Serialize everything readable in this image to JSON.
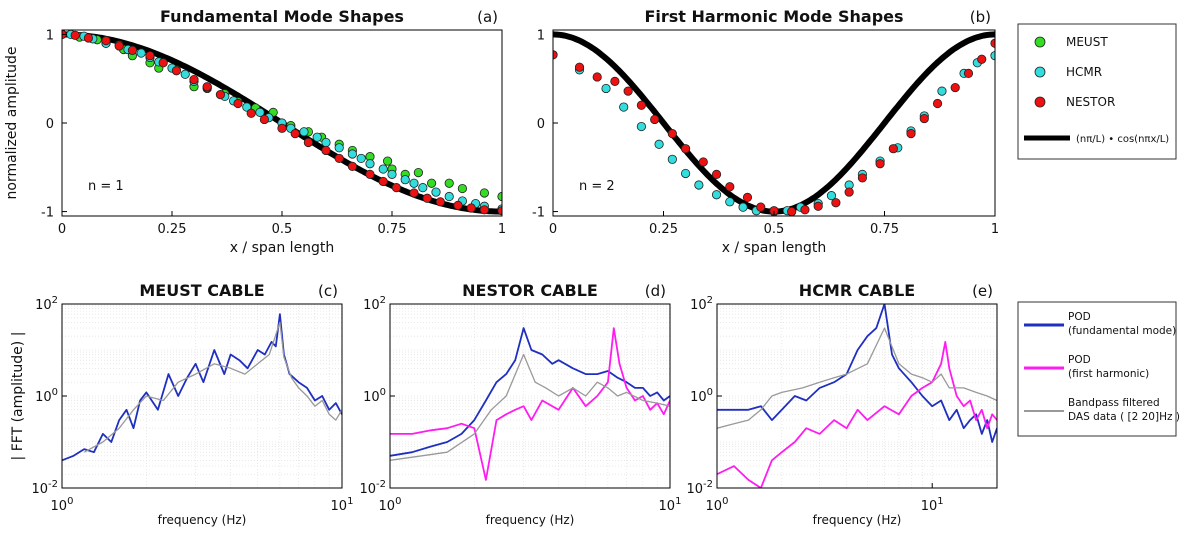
{
  "colors": {
    "meust": "#33dd22",
    "hcmr": "#33dddd",
    "nestor": "#ee1111",
    "theory": "#000000",
    "pod_fund": "#1f2fc0",
    "pod_harm": "#ff1cf0",
    "das": "#999999"
  },
  "legend_top": {
    "items": [
      "MEUST",
      "HCMR",
      "NESTOR",
      "(nπ/L) • cos(nπx/L)"
    ]
  },
  "legend_bottom": {
    "items": [
      {
        "line1": "POD",
        "line2": "(fundamental mode)"
      },
      {
        "line1": "POD",
        "line2": "(first harmonic)"
      },
      {
        "line1": "Bandpass filtered",
        "line2": "DAS data ( [2  20]Hz )"
      }
    ]
  },
  "chart_data": [
    {
      "id": "a",
      "type": "scatter",
      "title": "Fundamental Mode Shapes",
      "panel_label": "(a)",
      "annotation": "n = 1",
      "xlabel": "x / span length",
      "ylabel": "normalized amplitude",
      "xlim": [
        0,
        1
      ],
      "ylim": [
        -1.05,
        1.05
      ],
      "xticks": [
        "0",
        "0.25",
        "0.5",
        "0.75",
        "1"
      ],
      "yticks": [
        "-1",
        "0",
        "1"
      ],
      "grid": false,
      "n": 1,
      "series": [
        {
          "name": "MEUST",
          "x": [
            0.0,
            0.04,
            0.08,
            0.1,
            0.14,
            0.16,
            0.2,
            0.22,
            0.26,
            0.3,
            0.33,
            0.37,
            0.4,
            0.44,
            0.48,
            0.52,
            0.56,
            0.59,
            0.63,
            0.66,
            0.7,
            0.74,
            0.75,
            0.78,
            0.81,
            0.84,
            0.88,
            0.91,
            0.96,
            1.0
          ],
          "y": [
            1.0,
            0.97,
            0.94,
            0.9,
            0.83,
            0.76,
            0.68,
            0.62,
            0.6,
            0.41,
            0.39,
            0.33,
            0.24,
            0.17,
            0.12,
            -0.03,
            -0.1,
            -0.16,
            -0.24,
            -0.31,
            -0.38,
            -0.43,
            -0.52,
            -0.58,
            -0.56,
            -0.68,
            -0.68,
            -0.74,
            -0.79,
            -0.83
          ]
        },
        {
          "name": "HCMR",
          "x": [
            0.0,
            0.02,
            0.05,
            0.07,
            0.1,
            0.13,
            0.15,
            0.18,
            0.2,
            0.22,
            0.25,
            0.28,
            0.3,
            0.33,
            0.37,
            0.39,
            0.42,
            0.45,
            0.47,
            0.5,
            0.52,
            0.55,
            0.58,
            0.6,
            0.63,
            0.66,
            0.68,
            0.7,
            0.73,
            0.75,
            0.78,
            0.8,
            0.82,
            0.85,
            0.88,
            0.91,
            0.94,
            0.96,
            1.0
          ],
          "y": [
            1.0,
            1.0,
            0.98,
            0.95,
            0.9,
            0.88,
            0.83,
            0.79,
            0.74,
            0.69,
            0.62,
            0.55,
            0.47,
            0.4,
            0.3,
            0.25,
            0.18,
            0.12,
            0.06,
            0.0,
            -0.06,
            -0.1,
            -0.16,
            -0.22,
            -0.28,
            -0.35,
            -0.4,
            -0.46,
            -0.52,
            -0.58,
            -0.64,
            -0.68,
            -0.73,
            -0.78,
            -0.83,
            -0.88,
            -0.91,
            -0.94,
            -0.97
          ]
        },
        {
          "name": "NESTOR",
          "x": [
            0.0,
            0.03,
            0.06,
            0.1,
            0.13,
            0.16,
            0.2,
            0.23,
            0.26,
            0.3,
            0.33,
            0.36,
            0.4,
            0.43,
            0.46,
            0.5,
            0.53,
            0.56,
            0.6,
            0.63,
            0.66,
            0.7,
            0.73,
            0.76,
            0.8,
            0.83,
            0.86,
            0.9,
            0.93,
            0.96,
            1.0
          ],
          "y": [
            1.0,
            0.99,
            0.96,
            0.93,
            0.87,
            0.82,
            0.76,
            0.68,
            0.59,
            0.49,
            0.41,
            0.32,
            0.22,
            0.11,
            0.04,
            -0.06,
            -0.12,
            -0.22,
            -0.31,
            -0.4,
            -0.49,
            -0.58,
            -0.66,
            -0.73,
            -0.79,
            -0.85,
            -0.89,
            -0.93,
            -0.96,
            -0.98,
            -0.99
          ]
        }
      ]
    },
    {
      "id": "b",
      "type": "scatter",
      "title": "First Harmonic Mode Shapes",
      "panel_label": "(b)",
      "annotation": "n = 2",
      "xlabel": "x / span length",
      "ylabel": "",
      "xlim": [
        0,
        1
      ],
      "ylim": [
        -1.05,
        1.05
      ],
      "xticks": [
        "0",
        "0.25",
        "0.5",
        "0.75",
        "1"
      ],
      "yticks": [
        "-1",
        "0",
        "1"
      ],
      "grid": false,
      "n": 2,
      "series": [
        {
          "name": "HCMR",
          "x": [
            0.0,
            0.06,
            0.12,
            0.16,
            0.2,
            0.24,
            0.27,
            0.3,
            0.33,
            0.37,
            0.4,
            0.43,
            0.46,
            0.5,
            0.53,
            0.56,
            0.6,
            0.63,
            0.67,
            0.7,
            0.74,
            0.78,
            0.81,
            0.84,
            0.88,
            0.93,
            0.96,
            1.0
          ],
          "y": [
            0.77,
            0.6,
            0.39,
            0.18,
            -0.04,
            -0.24,
            -0.41,
            -0.57,
            -0.7,
            -0.81,
            -0.89,
            -0.95,
            -0.99,
            -1.0,
            -0.99,
            -0.95,
            -0.91,
            -0.82,
            -0.7,
            -0.58,
            -0.43,
            -0.28,
            -0.09,
            0.08,
            0.36,
            0.56,
            0.68,
            0.76
          ]
        },
        {
          "name": "NESTOR",
          "x": [
            0.0,
            0.06,
            0.1,
            0.14,
            0.17,
            0.2,
            0.23,
            0.27,
            0.3,
            0.34,
            0.37,
            0.4,
            0.44,
            0.47,
            0.5,
            0.54,
            0.57,
            0.6,
            0.64,
            0.67,
            0.7,
            0.74,
            0.77,
            0.81,
            0.84,
            0.87,
            0.91,
            0.94,
            0.97,
            1.0
          ],
          "y": [
            0.77,
            0.63,
            0.52,
            0.47,
            0.36,
            0.2,
            0.04,
            -0.12,
            -0.29,
            -0.44,
            -0.58,
            -0.72,
            -0.84,
            -0.95,
            -0.99,
            -1.0,
            -0.98,
            -0.94,
            -0.9,
            -0.78,
            -0.62,
            -0.46,
            -0.29,
            -0.12,
            0.05,
            0.22,
            0.4,
            0.56,
            0.72,
            0.9
          ]
        }
      ]
    },
    {
      "id": "c",
      "type": "line",
      "title": "MEUST CABLE",
      "panel_label": "(c)",
      "xlabel": "frequency (Hz)",
      "ylabel": "| FFT (amplitude) |",
      "xscale": "log",
      "yscale": "log",
      "xlim": [
        1,
        10
      ],
      "ylim": [
        0.01,
        100
      ],
      "xticks": [
        {
          "v": 1,
          "base": "10",
          "exp": "0"
        },
        {
          "v": 10,
          "base": "10",
          "exp": "1"
        }
      ],
      "yticks": [
        {
          "v": 0.01,
          "base": "10",
          "exp": "-2"
        },
        {
          "v": 1,
          "base": "10",
          "exp": "0"
        },
        {
          "v": 100,
          "base": "10",
          "exp": "2"
        }
      ],
      "grid": true,
      "series": [
        {
          "name": "POD (fundamental mode)",
          "color_key": "pod_fund",
          "x": [
            1.0,
            1.1,
            1.2,
            1.3,
            1.4,
            1.5,
            1.6,
            1.7,
            1.8,
            1.9,
            2.0,
            2.2,
            2.4,
            2.6,
            2.8,
            3.0,
            3.2,
            3.5,
            3.8,
            4.0,
            4.3,
            4.6,
            5.0,
            5.3,
            5.6,
            5.8,
            6.0,
            6.2,
            6.5,
            7.0,
            7.5,
            8.0,
            8.5,
            9.0,
            9.5,
            10.0
          ],
          "y": [
            0.04,
            0.05,
            0.07,
            0.06,
            0.15,
            0.1,
            0.3,
            0.5,
            0.2,
            0.8,
            1.2,
            0.5,
            3.0,
            1.0,
            2.5,
            5.0,
            2.0,
            10.0,
            3.0,
            8.0,
            6.0,
            4.0,
            10.0,
            8.0,
            15.0,
            12.0,
            60.0,
            8.0,
            3.0,
            2.0,
            1.5,
            0.8,
            1.0,
            0.5,
            0.7,
            0.4
          ]
        },
        {
          "name": "Bandpass filtered DAS data",
          "color_key": "das",
          "x": [
            1.2,
            1.4,
            1.6,
            1.8,
            2.0,
            2.3,
            2.6,
            3.0,
            3.5,
            4.0,
            4.5,
            5.0,
            5.5,
            6.0,
            6.2,
            6.6,
            7.0,
            7.5,
            8.0,
            8.5,
            9.0,
            9.5,
            10.0
          ],
          "y": [
            0.06,
            0.1,
            0.2,
            0.5,
            1.0,
            0.8,
            2.0,
            3.0,
            5.0,
            4.0,
            3.0,
            5.0,
            8.0,
            40.0,
            7.0,
            2.5,
            1.5,
            1.0,
            0.6,
            0.8,
            0.4,
            0.3,
            0.5
          ]
        }
      ]
    },
    {
      "id": "d",
      "type": "line",
      "title": "NESTOR CABLE",
      "panel_label": "(d)",
      "xlabel": "frequency (Hz)",
      "ylabel": "",
      "xscale": "log",
      "yscale": "log",
      "xlim": [
        1,
        10
      ],
      "ylim": [
        0.01,
        100
      ],
      "xticks": [
        {
          "v": 1,
          "base": "10",
          "exp": "0"
        },
        {
          "v": 10,
          "base": "10",
          "exp": "1"
        }
      ],
      "yticks": [
        {
          "v": 0.01,
          "base": "10",
          "exp": "-2"
        },
        {
          "v": 1,
          "base": "10",
          "exp": "0"
        },
        {
          "v": 100,
          "base": "10",
          "exp": "2"
        }
      ],
      "grid": true,
      "series": [
        {
          "name": "POD (fundamental mode)",
          "color_key": "pod_fund",
          "x": [
            1.0,
            1.2,
            1.4,
            1.6,
            1.8,
            2.0,
            2.2,
            2.4,
            2.6,
            2.8,
            3.0,
            3.2,
            3.5,
            3.8,
            4.0,
            4.5,
            5.0,
            5.5,
            6.0,
            6.5,
            7.0,
            7.5,
            8.0,
            8.5,
            9.0,
            9.5,
            10.0
          ],
          "y": [
            0.05,
            0.06,
            0.08,
            0.1,
            0.15,
            0.3,
            0.8,
            2.0,
            3.0,
            6.0,
            30.0,
            10.0,
            8.0,
            5.0,
            6.0,
            4.0,
            3.0,
            3.0,
            3.5,
            2.5,
            2.0,
            1.5,
            1.5,
            1.0,
            1.2,
            0.8,
            1.0
          ]
        },
        {
          "name": "POD (first harmonic)",
          "color_key": "pod_harm",
          "x": [
            1.0,
            1.2,
            1.4,
            1.6,
            1.8,
            2.0,
            2.2,
            2.4,
            2.6,
            2.8,
            3.0,
            3.2,
            3.5,
            4.0,
            4.5,
            5.0,
            5.5,
            6.0,
            6.3,
            6.6,
            7.0,
            7.5,
            8.0,
            8.5,
            9.0,
            9.5,
            10.0
          ],
          "y": [
            0.15,
            0.15,
            0.18,
            0.2,
            0.25,
            0.2,
            0.015,
            0.3,
            0.4,
            0.5,
            0.6,
            0.3,
            0.8,
            0.5,
            1.5,
            0.6,
            1.0,
            2.0,
            30.0,
            5.0,
            1.5,
            0.8,
            1.0,
            0.5,
            0.7,
            0.4,
            0.8
          ]
        },
        {
          "name": "Bandpass filtered DAS data",
          "color_key": "das",
          "x": [
            1.0,
            1.3,
            1.6,
            2.0,
            2.3,
            2.6,
            3.0,
            3.3,
            3.6,
            4.0,
            4.5,
            5.0,
            5.5,
            6.0,
            6.5,
            7.0,
            8.0,
            9.0,
            10.0
          ],
          "y": [
            0.04,
            0.05,
            0.06,
            0.15,
            0.5,
            1.0,
            8.0,
            2.0,
            1.5,
            1.0,
            1.5,
            1.0,
            2.0,
            1.5,
            1.0,
            1.2,
            0.8,
            0.7,
            0.6
          ]
        }
      ]
    },
    {
      "id": "e",
      "type": "line",
      "title": "HCMR CABLE",
      "panel_label": "(e)",
      "xlabel": "frequency (Hz)",
      "ylabel": "",
      "xscale": "log",
      "yscale": "log",
      "xlim": [
        1,
        20
      ],
      "ylim": [
        0.01,
        100
      ],
      "xticks": [
        {
          "v": 1,
          "base": "10",
          "exp": "0"
        },
        {
          "v": 10,
          "base": "10",
          "exp": "1"
        }
      ],
      "yticks": [
        {
          "v": 0.01,
          "base": "10",
          "exp": "-2"
        },
        {
          "v": 1,
          "base": "10",
          "exp": "0"
        },
        {
          "v": 100,
          "base": "10",
          "exp": "2"
        }
      ],
      "grid": true,
      "series": [
        {
          "name": "POD (fundamental mode)",
          "color_key": "pod_fund",
          "x": [
            1.0,
            1.2,
            1.4,
            1.6,
            1.8,
            2.0,
            2.3,
            2.6,
            3.0,
            3.5,
            4.0,
            4.5,
            5.0,
            5.5,
            6.0,
            6.5,
            7.0,
            8.0,
            9.0,
            10.0,
            11.0,
            12.0,
            13.0,
            14.0,
            15.0,
            16.0,
            17.0,
            18.0,
            19.0,
            20.0
          ],
          "y": [
            0.5,
            0.5,
            0.5,
            0.6,
            0.3,
            0.5,
            1.0,
            0.8,
            1.5,
            2.0,
            3.0,
            10.0,
            20.0,
            30.0,
            100.0,
            8.0,
            4.0,
            2.0,
            1.0,
            0.6,
            0.8,
            0.3,
            0.5,
            0.2,
            0.3,
            0.4,
            0.15,
            0.3,
            0.1,
            0.2
          ]
        },
        {
          "name": "POD (first harmonic)",
          "color_key": "pod_harm",
          "x": [
            1.0,
            1.2,
            1.4,
            1.6,
            1.8,
            2.0,
            2.3,
            2.6,
            3.0,
            3.5,
            4.0,
            4.5,
            5.0,
            6.0,
            7.0,
            8.0,
            9.0,
            10.0,
            11.0,
            11.5,
            12.0,
            13.0,
            14.0,
            15.0,
            16.0,
            17.0,
            18.0,
            19.0,
            20.0
          ],
          "y": [
            0.02,
            0.03,
            0.015,
            0.01,
            0.04,
            0.06,
            0.1,
            0.2,
            0.15,
            0.3,
            0.2,
            0.5,
            0.3,
            0.6,
            0.4,
            1.0,
            1.5,
            2.0,
            5.0,
            15.0,
            4.0,
            1.0,
            0.6,
            0.8,
            0.3,
            0.5,
            0.2,
            0.4,
            0.3
          ]
        },
        {
          "name": "Bandpass filtered DAS data",
          "color_key": "das",
          "x": [
            1.0,
            1.2,
            1.4,
            1.6,
            1.8,
            2.0,
            2.5,
            3.0,
            3.5,
            4.0,
            5.0,
            6.0,
            7.0,
            8.0,
            9.0,
            10.0,
            11.0,
            12.0,
            14.0,
            16.0,
            18.0,
            20.0
          ],
          "y": [
            0.2,
            0.25,
            0.3,
            0.5,
            1.0,
            1.2,
            1.5,
            2.0,
            2.5,
            3.0,
            5.0,
            30.0,
            5.0,
            3.0,
            2.5,
            2.0,
            3.0,
            1.5,
            1.5,
            1.2,
            1.0,
            0.8
          ]
        }
      ]
    }
  ]
}
